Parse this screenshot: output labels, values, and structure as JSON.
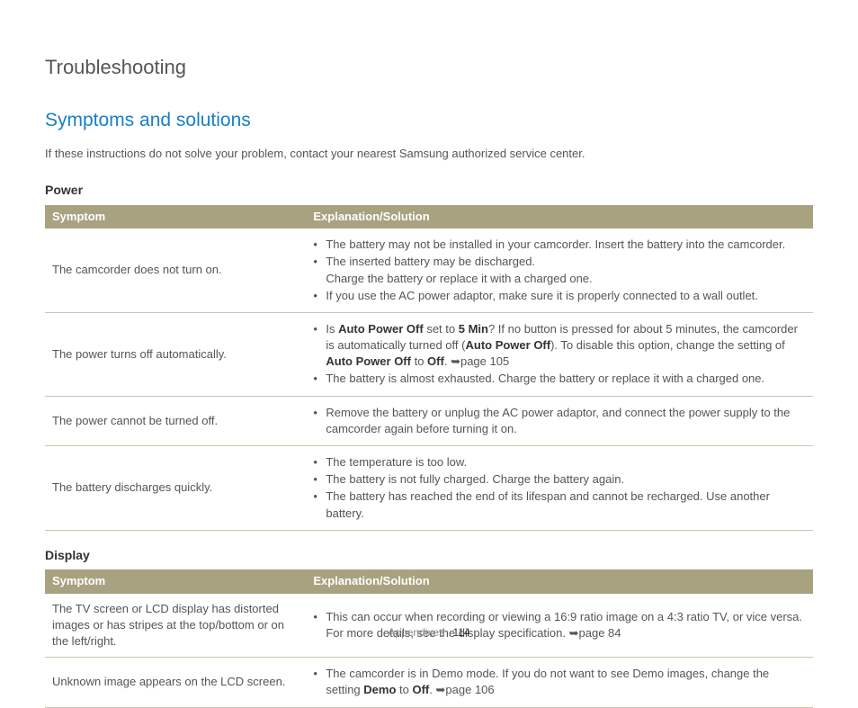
{
  "page_title": "Troubleshooting",
  "section_title": "Symptoms and solutions",
  "intro": "If these instructions do not solve your problem, contact your nearest Samsung authorized service center.",
  "colors": {
    "header_bg": "#a8a281",
    "header_text": "#ffffff",
    "section_title": "#1a7fc4",
    "body_text": "#555555",
    "border": "#c9c5af"
  },
  "tables": [
    {
      "title": "Power",
      "headers": [
        "Symptom",
        "Explanation/Solution"
      ],
      "rows": [
        {
          "symptom": "The camcorder does not turn on.",
          "solutions": [
            {
              "text": "The battery may not be installed in your camcorder. Insert the battery into the camcorder."
            },
            {
              "text": "The inserted battery may be discharged.",
              "sub": "Charge the battery or replace it with a charged one."
            },
            {
              "text": "If you use the AC power adaptor, make sure it is properly connected to a wall outlet."
            }
          ]
        },
        {
          "symptom": "The power turns off automatically.",
          "solutions": [
            {
              "html": "Is <span class='b'>Auto Power Off</span> set to <span class='b'>5 Min</span>? If no button is pressed for about 5 minutes, the camcorder is automatically turned off (<span class='b'>Auto Power Off</span>). To disable this option, change the setting of <span class='b'>Auto Power Off</span> to <span class='b'>Off</span>. <span class='arrow'>➥</span>page 105"
            },
            {
              "text": "The battery is almost exhausted. Charge the battery or replace it with a charged one."
            }
          ]
        },
        {
          "symptom": "The power cannot be turned off.",
          "solutions": [
            {
              "text": "Remove the battery or unplug the AC power adaptor, and connect the power supply to the camcorder again before turning it on."
            }
          ]
        },
        {
          "symptom": "The battery discharges quickly.",
          "solutions": [
            {
              "text": "The temperature is too low."
            },
            {
              "text": "The battery is not fully charged. Charge the battery again."
            },
            {
              "text": "The battery has reached the end of its lifespan and cannot be recharged. Use another battery."
            }
          ]
        }
      ]
    },
    {
      "title": "Display",
      "headers": [
        "Symptom",
        "Explanation/Solution"
      ],
      "rows": [
        {
          "symptom": "The TV screen or LCD display has distorted images or has stripes at the top/bottom or on the left/right.",
          "solutions": [
            {
              "html": "This can occur when recording or viewing a 16:9 ratio image on a 4:3 ratio TV, or vice versa. For more details, see the display specification. <span class='arrow'>➥</span>page 84"
            }
          ]
        },
        {
          "symptom": "Unknown image appears on the LCD screen.",
          "solutions": [
            {
              "html": "The camcorder is in Demo mode. If you do not want to see Demo images, change the setting <span class='b'>Demo</span> to <span class='b'>Off</span>. <span class='arrow'>➥</span>page 106"
            }
          ]
        }
      ]
    }
  ],
  "footer": {
    "label": "Appendixes",
    "page": "114"
  }
}
